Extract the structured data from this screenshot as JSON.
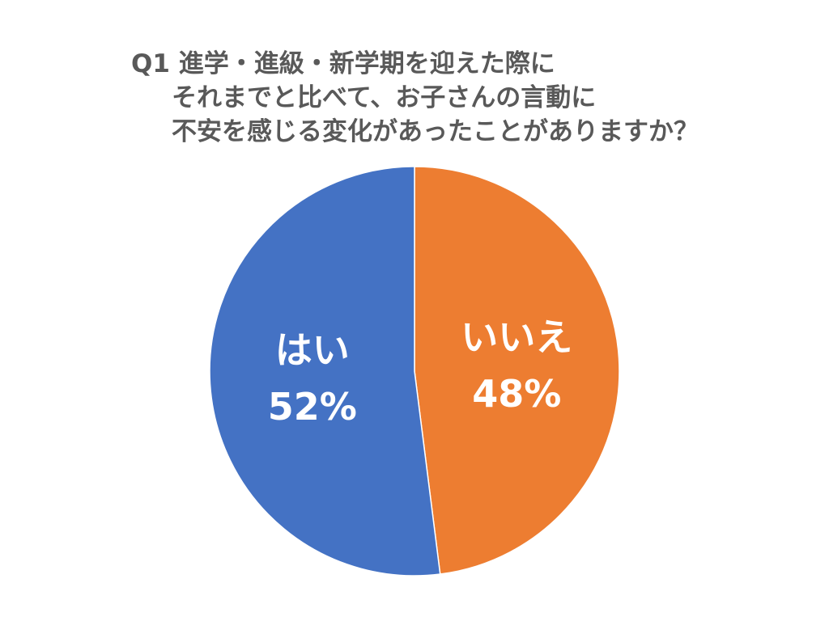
{
  "chart_data": {
    "type": "pie",
    "title_lines": [
      "Q1 進学・進級・新学期を迎えた際に",
      "それまでと比べて、お子さんの言動に",
      "不安を感じる変化があったことがありますか？"
    ],
    "slices": [
      {
        "label": "いいえ",
        "value": 48,
        "value_label": "48%",
        "color": "#ED7D31"
      },
      {
        "label": "はい",
        "value": 52,
        "value_label": "52%",
        "color": "#4472C4"
      }
    ],
    "start": "top",
    "direction": "clockwise",
    "legend": "none"
  }
}
